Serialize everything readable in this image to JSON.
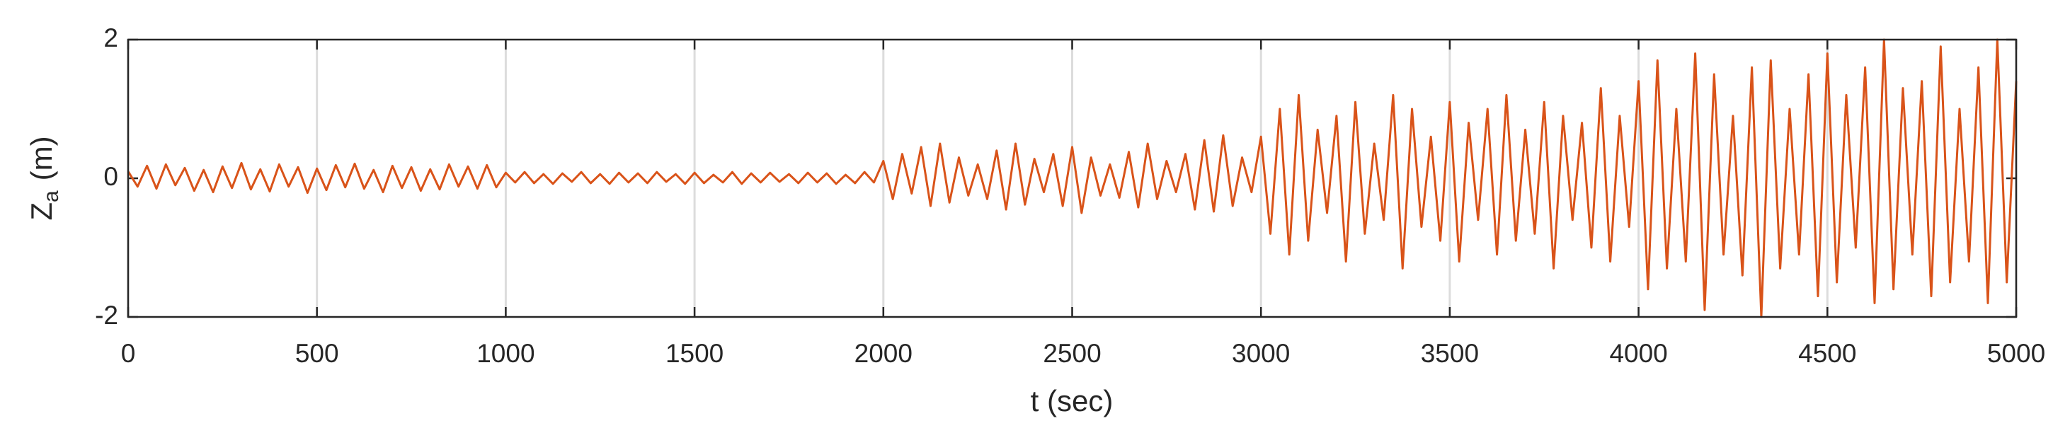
{
  "chart_data": {
    "type": "line",
    "xlabel": "t (sec)",
    "ylabel": [
      "Z",
      "a",
      "(m)"
    ],
    "xlim": [
      0,
      5000
    ],
    "xticks": [
      0,
      500,
      1000,
      1500,
      2000,
      2500,
      3000,
      3500,
      4000,
      4500,
      5000
    ],
    "ylim": [
      -2,
      2
    ],
    "yticks": [
      -2,
      0,
      2
    ],
    "xgrid": true,
    "series": [
      {
        "color": "#d95319",
        "x": [
          0,
          25,
          50,
          75,
          100,
          125,
          150,
          175,
          200,
          225,
          250,
          275,
          300,
          325,
          350,
          375,
          400,
          425,
          450,
          475,
          500,
          525,
          550,
          575,
          600,
          625,
          650,
          675,
          700,
          725,
          750,
          775,
          800,
          825,
          850,
          875,
          900,
          925,
          950,
          975,
          1000,
          1025,
          1050,
          1075,
          1100,
          1125,
          1150,
          1175,
          1200,
          1225,
          1250,
          1275,
          1300,
          1325,
          1350,
          1375,
          1400,
          1425,
          1450,
          1475,
          1500,
          1525,
          1550,
          1575,
          1600,
          1625,
          1650,
          1675,
          1700,
          1725,
          1750,
          1775,
          1800,
          1825,
          1850,
          1875,
          1900,
          1925,
          1950,
          1975,
          2000,
          2025,
          2050,
          2075,
          2100,
          2125,
          2150,
          2175,
          2200,
          2225,
          2250,
          2275,
          2300,
          2325,
          2350,
          2375,
          2400,
          2425,
          2450,
          2475,
          2500,
          2525,
          2550,
          2575,
          2600,
          2625,
          2650,
          2675,
          2700,
          2725,
          2750,
          2775,
          2800,
          2825,
          2850,
          2875,
          2900,
          2925,
          2950,
          2975,
          3000,
          3025,
          3050,
          3075,
          3100,
          3125,
          3150,
          3175,
          3200,
          3225,
          3250,
          3275,
          3300,
          3325,
          3350,
          3375,
          3400,
          3425,
          3450,
          3475,
          3500,
          3525,
          3550,
          3575,
          3600,
          3625,
          3650,
          3675,
          3700,
          3725,
          3750,
          3775,
          3800,
          3825,
          3850,
          3875,
          3900,
          3925,
          3950,
          3975,
          4000,
          4025,
          4050,
          4075,
          4100,
          4125,
          4150,
          4175,
          4200,
          4225,
          4250,
          4275,
          4300,
          4325,
          4350,
          4375,
          4400,
          4425,
          4450,
          4475,
          4500,
          4525,
          4550,
          4575,
          4600,
          4625,
          4650,
          4675,
          4700,
          4725,
          4750,
          4775,
          4800,
          4825,
          4850,
          4875,
          4900,
          4925,
          4950,
          4975,
          5000
        ],
        "values": [
          0.1,
          -0.12,
          0.18,
          -0.15,
          0.2,
          -0.1,
          0.15,
          -0.18,
          0.12,
          -0.2,
          0.17,
          -0.14,
          0.22,
          -0.16,
          0.13,
          -0.19,
          0.2,
          -0.12,
          0.16,
          -0.21,
          0.14,
          -0.17,
          0.19,
          -0.13,
          0.21,
          -0.15,
          0.12,
          -0.2,
          0.18,
          -0.14,
          0.16,
          -0.18,
          0.13,
          -0.16,
          0.2,
          -0.12,
          0.17,
          -0.15,
          0.19,
          -0.13,
          0.08,
          -0.06,
          0.09,
          -0.07,
          0.06,
          -0.08,
          0.07,
          -0.05,
          0.09,
          -0.07,
          0.06,
          -0.08,
          0.08,
          -0.06,
          0.07,
          -0.07,
          0.09,
          -0.05,
          0.06,
          -0.08,
          0.08,
          -0.07,
          0.05,
          -0.06,
          0.09,
          -0.08,
          0.07,
          -0.06,
          0.08,
          -0.05,
          0.06,
          -0.07,
          0.08,
          -0.06,
          0.07,
          -0.08,
          0.05,
          -0.07,
          0.09,
          -0.06,
          0.25,
          -0.3,
          0.35,
          -0.22,
          0.45,
          -0.4,
          0.5,
          -0.35,
          0.3,
          -0.25,
          0.2,
          -0.3,
          0.4,
          -0.45,
          0.5,
          -0.38,
          0.28,
          -0.2,
          0.35,
          -0.4,
          0.45,
          -0.5,
          0.3,
          -0.25,
          0.2,
          -0.28,
          0.38,
          -0.42,
          0.5,
          -0.3,
          0.25,
          -0.2,
          0.35,
          -0.45,
          0.55,
          -0.48,
          0.62,
          -0.4,
          0.3,
          -0.2,
          0.6,
          -0.8,
          1.0,
          -1.1,
          1.2,
          -0.9,
          0.7,
          -0.5,
          0.9,
          -1.2,
          1.1,
          -0.8,
          0.5,
          -0.6,
          1.2,
          -1.3,
          1.0,
          -0.7,
          0.6,
          -0.9,
          1.1,
          -1.2,
          0.8,
          -0.6,
          1.0,
          -1.1,
          1.2,
          -0.9,
          0.7,
          -0.8,
          1.1,
          -1.3,
          0.9,
          -0.6,
          0.8,
          -1.0,
          1.3,
          -1.2,
          0.9,
          -0.7,
          1.4,
          -1.6,
          1.7,
          -1.3,
          1.0,
          -1.2,
          1.8,
          -1.9,
          1.5,
          -1.1,
          0.9,
          -1.4,
          1.6,
          -2.0,
          1.7,
          -1.3,
          1.0,
          -1.1,
          1.5,
          -1.7,
          1.8,
          -1.5,
          1.2,
          -1.0,
          1.6,
          -1.8,
          2.0,
          -1.6,
          1.3,
          -1.1,
          1.4,
          -1.7,
          1.9,
          -1.5,
          1.0,
          -1.2,
          1.6,
          -1.8,
          2.0,
          -1.5,
          1.4
        ]
      }
    ]
  }
}
